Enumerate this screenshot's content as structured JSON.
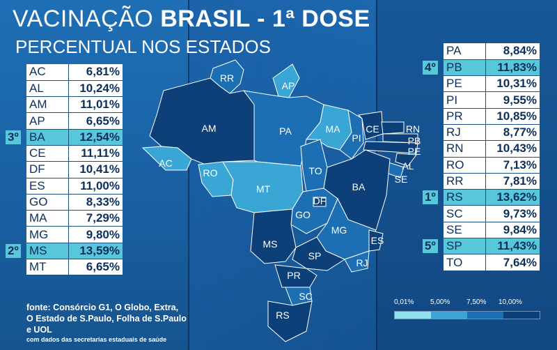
{
  "header": {
    "title_light": "VACINAÇÃO",
    "title_bold": "BRASIL - 1ª DOSE",
    "subtitle": "PERCENTUAL NOS ESTADOS"
  },
  "chart_data": {
    "type": "table",
    "title": "VACINAÇÃO BRASIL - 1ª DOSE",
    "subtitle": "PERCENTUAL NOS ESTADOS",
    "left_rows": [
      {
        "uf": "AC",
        "pct": "6,81%",
        "value": 6.81,
        "rank": ""
      },
      {
        "uf": "AL",
        "pct": "10,24%",
        "value": 10.24,
        "rank": ""
      },
      {
        "uf": "AM",
        "pct": "11,01%",
        "value": 11.01,
        "rank": ""
      },
      {
        "uf": "AP",
        "pct": "6,65%",
        "value": 6.65,
        "rank": ""
      },
      {
        "uf": "BA",
        "pct": "12,54%",
        "value": 12.54,
        "rank": "3º"
      },
      {
        "uf": "CE",
        "pct": "11,11%",
        "value": 11.11,
        "rank": ""
      },
      {
        "uf": "DF",
        "pct": "10,41%",
        "value": 10.41,
        "rank": ""
      },
      {
        "uf": "ES",
        "pct": "11,00%",
        "value": 11.0,
        "rank": ""
      },
      {
        "uf": "GO",
        "pct": "8,33%",
        "value": 8.33,
        "rank": ""
      },
      {
        "uf": "MA",
        "pct": "7,29%",
        "value": 7.29,
        "rank": ""
      },
      {
        "uf": "MG",
        "pct": "9,80%",
        "value": 9.8,
        "rank": ""
      },
      {
        "uf": "MS",
        "pct": "13,59%",
        "value": 13.59,
        "rank": "2º"
      },
      {
        "uf": "MT",
        "pct": "6,65%",
        "value": 6.65,
        "rank": ""
      }
    ],
    "right_rows": [
      {
        "uf": "PA",
        "pct": "8,84%",
        "value": 8.84,
        "rank": ""
      },
      {
        "uf": "PB",
        "pct": "11,83%",
        "value": 11.83,
        "rank": "4º"
      },
      {
        "uf": "PE",
        "pct": "10,31%",
        "value": 10.31,
        "rank": ""
      },
      {
        "uf": "PI",
        "pct": "9,55%",
        "value": 9.55,
        "rank": ""
      },
      {
        "uf": "PR",
        "pct": "10,85%",
        "value": 10.85,
        "rank": ""
      },
      {
        "uf": "RJ",
        "pct": "8,77%",
        "value": 8.77,
        "rank": ""
      },
      {
        "uf": "RN",
        "pct": "10,43%",
        "value": 10.43,
        "rank": ""
      },
      {
        "uf": "RO",
        "pct": "7,13%",
        "value": 7.13,
        "rank": ""
      },
      {
        "uf": "RR",
        "pct": "7,81%",
        "value": 7.81,
        "rank": ""
      },
      {
        "uf": "RS",
        "pct": "13,62%",
        "value": 13.62,
        "rank": "1º"
      },
      {
        "uf": "SC",
        "pct": "9,73%",
        "value": 9.73,
        "rank": ""
      },
      {
        "uf": "SE",
        "pct": "9,84%",
        "value": 9.84,
        "rank": ""
      },
      {
        "uf": "SP",
        "pct": "11,43%",
        "value": 11.43,
        "rank": "5º"
      },
      {
        "uf": "TO",
        "pct": "7,64%",
        "value": 7.64,
        "rank": ""
      }
    ],
    "legend": {
      "ticks": [
        "0,01%",
        "5,00%",
        "7,50%",
        "10,00%"
      ],
      "colors": [
        "#8fe3ef",
        "#3aa6d6",
        "#1d6fb3",
        "#0d3f78"
      ]
    }
  },
  "map_labels": [
    "RR",
    "AP",
    "AM",
    "PA",
    "MA",
    "CE",
    "RN",
    "PB",
    "PE",
    "AL",
    "SE",
    "PI",
    "AC",
    "RO",
    "MT",
    "TO",
    "BA",
    "DF",
    "GO",
    "MG",
    "ES",
    "MS",
    "SP",
    "RJ",
    "PR",
    "SC",
    "RS"
  ],
  "source": {
    "text": "fonte: Consórcio G1, O Globo, Extra, O Estado de S.Paulo, Folha de S.Paulo e UOL",
    "note": "com dados das secretarias estaduais de saúde"
  },
  "colors": {
    "highlight": "#58c7d9",
    "table_text": "#0b2f5a",
    "background": "#1f6fb6"
  }
}
